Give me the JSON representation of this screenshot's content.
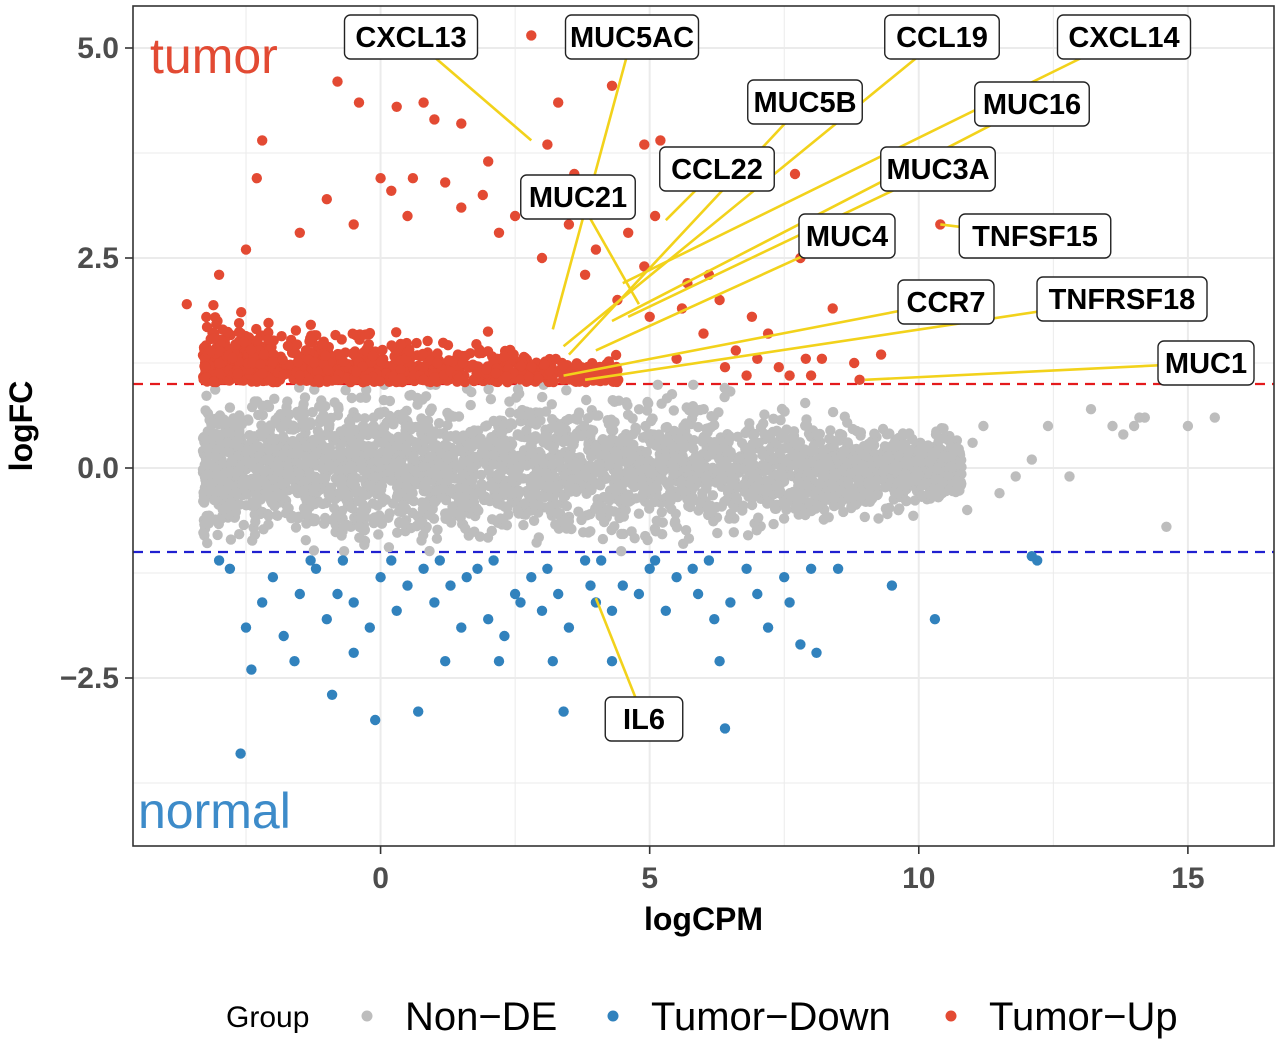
{
  "chart_data": {
    "type": "scatter",
    "xlabel": "logCPM",
    "ylabel": "logFC",
    "xlim": [
      -4.6,
      16.6
    ],
    "ylim": [
      -4.5,
      5.5
    ],
    "xticks": [
      0,
      5,
      10,
      15
    ],
    "xtick_labels": [
      "0",
      "5",
      "10",
      "15"
    ],
    "yticks": [
      -2.5,
      0.0,
      2.5,
      5.0
    ],
    "ytick_labels": [
      "−2.5",
      "0.0",
      "2.5",
      "5.0"
    ],
    "grid": true,
    "thresholds": [
      {
        "y": 1,
        "color": "#e41a1c",
        "style": "dashed"
      },
      {
        "y": -1,
        "color": "#2020d0",
        "style": "dashed"
      }
    ],
    "annotations": [
      {
        "text": "tumor",
        "color": "#e24a33"
      },
      {
        "text": "normal",
        "color": "#3d8bc9"
      }
    ],
    "legend": {
      "title": "Group",
      "position": "bottom",
      "entries": [
        {
          "name": "Non−DE",
          "color": "#bdbdbd"
        },
        {
          "name": "Tumor−Down",
          "color": "#3182bd"
        },
        {
          "name": "Tumor−Up",
          "color": "#e34a33"
        }
      ]
    },
    "series": [
      {
        "name": "Non−DE",
        "color": "#bdbdbd",
        "region": {
          "y_range": [
            -1,
            1
          ],
          "x_range": [
            -3.3,
            10.8
          ],
          "count_hint": "dense"
        },
        "outlier_points": [
          [
            11.2,
            0.5
          ],
          [
            11.5,
            -0.3
          ],
          [
            11.8,
            -0.1
          ],
          [
            12.1,
            0.1
          ],
          [
            12.4,
            0.5
          ],
          [
            12.8,
            -0.1
          ],
          [
            13.2,
            0.7
          ],
          [
            13.6,
            0.5
          ],
          [
            13.8,
            0.4
          ],
          [
            14.0,
            0.5
          ],
          [
            14.1,
            0.6
          ],
          [
            14.2,
            0.6
          ],
          [
            14.6,
            -0.7
          ],
          [
            15.0,
            0.5
          ],
          [
            15.5,
            0.6
          ],
          [
            10.9,
            -0.5
          ],
          [
            11.0,
            0.3
          ]
        ]
      },
      {
        "name": "Tumor−Down",
        "color": "#3182bd",
        "points": [
          [
            -2.6,
            -3.4
          ],
          [
            -0.9,
            -2.7
          ],
          [
            -0.1,
            -3.0
          ],
          [
            0.7,
            -2.9
          ],
          [
            3.4,
            -2.9
          ],
          [
            6.4,
            -3.1
          ],
          [
            -2.4,
            -2.4
          ],
          [
            -1.6,
            -2.3
          ],
          [
            -0.5,
            -2.2
          ],
          [
            1.2,
            -2.3
          ],
          [
            2.2,
            -2.3
          ],
          [
            3.2,
            -2.3
          ],
          [
            4.3,
            -2.3
          ],
          [
            6.3,
            -2.3
          ],
          [
            8.1,
            -2.2
          ],
          [
            7.8,
            -2.1
          ],
          [
            10.3,
            -1.8
          ],
          [
            9.5,
            -1.4
          ],
          [
            12.2,
            -1.1
          ],
          [
            12.1,
            -1.05
          ],
          [
            8.5,
            -1.2
          ],
          [
            8.0,
            -1.2
          ],
          [
            7.5,
            -1.3
          ],
          [
            7.0,
            -1.5
          ],
          [
            6.5,
            -1.6
          ],
          [
            5.9,
            -1.5
          ],
          [
            5.5,
            -1.3
          ],
          [
            5.0,
            -1.2
          ],
          [
            4.5,
            -1.4
          ],
          [
            4.0,
            -1.6
          ],
          [
            3.5,
            -1.9
          ],
          [
            3.0,
            -1.7
          ],
          [
            2.5,
            -1.5
          ],
          [
            2.0,
            -1.8
          ],
          [
            1.5,
            -1.9
          ],
          [
            1.0,
            -1.6
          ],
          [
            0.5,
            -1.4
          ],
          [
            0.0,
            -1.3
          ],
          [
            -0.5,
            -1.6
          ],
          [
            -1.0,
            -1.8
          ],
          [
            -1.5,
            -1.5
          ],
          [
            -2.0,
            -1.3
          ],
          [
            -2.5,
            -1.9
          ],
          [
            -2.8,
            -1.2
          ],
          [
            -3.0,
            -1.1
          ],
          [
            -2.2,
            -1.6
          ],
          [
            -1.8,
            -2.0
          ],
          [
            -1.2,
            -1.2
          ],
          [
            -0.8,
            -1.5
          ],
          [
            -0.2,
            -1.9
          ],
          [
            0.3,
            -1.7
          ],
          [
            0.8,
            -1.2
          ],
          [
            1.3,
            -1.4
          ],
          [
            1.8,
            -1.2
          ],
          [
            2.3,
            -2.0
          ],
          [
            2.8,
            -1.3
          ],
          [
            3.3,
            -1.5
          ],
          [
            3.8,
            -1.1
          ],
          [
            4.3,
            -1.7
          ],
          [
            4.8,
            -1.5
          ],
          [
            5.3,
            -1.7
          ],
          [
            5.8,
            -1.2
          ],
          [
            6.2,
            -1.8
          ],
          [
            6.8,
            -1.2
          ],
          [
            7.2,
            -1.9
          ],
          [
            7.6,
            -1.6
          ],
          [
            -1.3,
            -1.1
          ],
          [
            -0.7,
            -1.1
          ],
          [
            0.2,
            -1.1
          ],
          [
            1.1,
            -1.1
          ],
          [
            2.1,
            -1.1
          ],
          [
            3.1,
            -1.2
          ],
          [
            4.1,
            -1.1
          ],
          [
            5.1,
            -1.1
          ],
          [
            6.1,
            -1.1
          ],
          [
            3.9,
            -1.4
          ],
          [
            2.6,
            -1.6
          ],
          [
            1.6,
            -1.3
          ]
        ]
      },
      {
        "name": "Tumor−Up",
        "color": "#e34a33",
        "region": {
          "y_range": [
            1,
            2.2
          ],
          "x_range": [
            -3.3,
            4.5
          ],
          "count_hint": "dense"
        },
        "points": [
          [
            2.8,
            5.15
          ],
          [
            -0.8,
            4.6
          ],
          [
            4.3,
            4.55
          ],
          [
            -0.4,
            4.35
          ],
          [
            0.3,
            4.3
          ],
          [
            0.8,
            4.35
          ],
          [
            3.3,
            4.35
          ],
          [
            1.0,
            4.15
          ],
          [
            1.5,
            4.1
          ],
          [
            -2.2,
            3.9
          ],
          [
            3.1,
            3.85
          ],
          [
            4.9,
            3.85
          ],
          [
            3.6,
            3.5
          ],
          [
            2.0,
            3.65
          ],
          [
            7.7,
            3.5
          ],
          [
            -2.3,
            3.45
          ],
          [
            0.0,
            3.45
          ],
          [
            0.6,
            3.45
          ],
          [
            1.9,
            3.25
          ],
          [
            3.3,
            3.2
          ],
          [
            10.4,
            2.9
          ],
          [
            7.8,
            2.5
          ],
          [
            -3.6,
            1.95
          ],
          [
            8.4,
            1.9
          ],
          [
            7.9,
            1.3
          ],
          [
            8.2,
            1.3
          ],
          [
            8.8,
            1.25
          ],
          [
            9.3,
            1.35
          ],
          [
            8.9,
            1.05
          ],
          [
            5.2,
            3.9
          ],
          [
            5.4,
            3.5
          ],
          [
            5.1,
            3.0
          ],
          [
            4.6,
            2.8
          ],
          [
            5.7,
            2.2
          ],
          [
            6.3,
            2.0
          ],
          [
            6.9,
            1.8
          ],
          [
            7.2,
            1.6
          ],
          [
            6.6,
            1.4
          ],
          [
            6.0,
            1.6
          ],
          [
            5.5,
            1.3
          ],
          [
            6.8,
            1.1
          ],
          [
            7.4,
            1.2
          ],
          [
            4.9,
            2.4
          ],
          [
            4.0,
            2.6
          ],
          [
            3.5,
            2.9
          ],
          [
            2.5,
            3.0
          ],
          [
            1.5,
            3.1
          ],
          [
            0.5,
            3.0
          ],
          [
            -0.5,
            2.9
          ],
          [
            -1.5,
            2.8
          ],
          [
            -2.5,
            2.6
          ],
          [
            -3.0,
            2.3
          ],
          [
            -1.0,
            3.2
          ],
          [
            0.2,
            3.3
          ],
          [
            1.2,
            3.4
          ],
          [
            2.2,
            2.8
          ],
          [
            3.0,
            2.5
          ],
          [
            3.8,
            2.3
          ],
          [
            4.4,
            2.0
          ],
          [
            5.0,
            1.8
          ],
          [
            5.6,
            1.9
          ],
          [
            6.1,
            2.3
          ],
          [
            6.4,
            1.2
          ],
          [
            7.0,
            1.3
          ],
          [
            7.6,
            1.1
          ],
          [
            8.0,
            1.1
          ]
        ]
      }
    ],
    "labels": [
      {
        "gene": "CXCL13",
        "point": [
          2.8,
          3.9
        ]
      },
      {
        "gene": "MUC5AC",
        "point": [
          3.2,
          1.65
        ]
      },
      {
        "gene": "CCL19",
        "point": [
          3.4,
          1.45
        ]
      },
      {
        "gene": "CXCL14",
        "point": [
          4.5,
          2.2
        ]
      },
      {
        "gene": "MUC5B",
        "point": [
          3.5,
          1.35
        ]
      },
      {
        "gene": "MUC16",
        "point": [
          4.3,
          1.75
        ]
      },
      {
        "gene": "CCL22",
        "point": [
          5.3,
          2.95
        ]
      },
      {
        "gene": "MUC3A",
        "point": [
          4.6,
          1.8
        ]
      },
      {
        "gene": "MUC21",
        "point": [
          4.8,
          1.95
        ]
      },
      {
        "gene": "MUC4",
        "point": [
          4.0,
          1.4
        ]
      },
      {
        "gene": "TNFSF15",
        "point": [
          10.4,
          2.9
        ]
      },
      {
        "gene": "CCR7",
        "point": [
          3.4,
          1.1
        ]
      },
      {
        "gene": "TNFRSF18",
        "point": [
          3.8,
          1.05
        ]
      },
      {
        "gene": "MUC1",
        "point": [
          9.0,
          1.05
        ]
      },
      {
        "gene": "IL6",
        "point": [
          4.0,
          -1.55
        ]
      }
    ]
  }
}
